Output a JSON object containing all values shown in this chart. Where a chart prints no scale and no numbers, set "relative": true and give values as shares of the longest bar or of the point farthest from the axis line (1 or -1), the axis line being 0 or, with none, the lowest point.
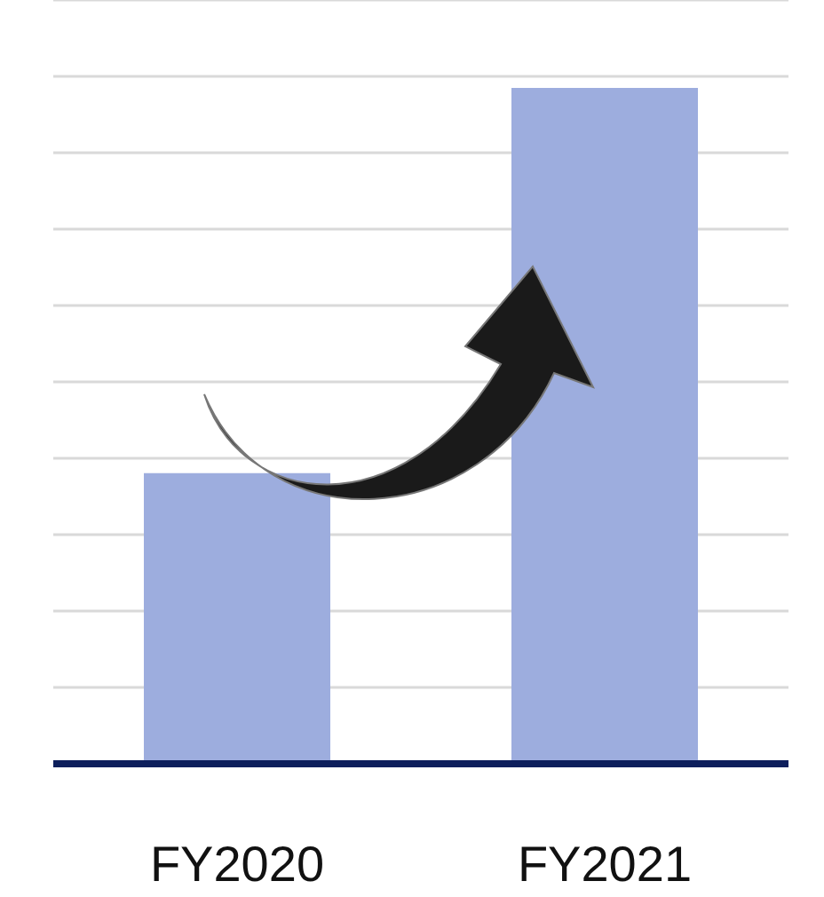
{
  "chart_data": {
    "type": "bar",
    "relative": true,
    "categories": [
      "FY2020",
      "FY2021"
    ],
    "values": [
      0.43,
      1
    ],
    "color": "#9dadde",
    "grid": "y"
  }
}
